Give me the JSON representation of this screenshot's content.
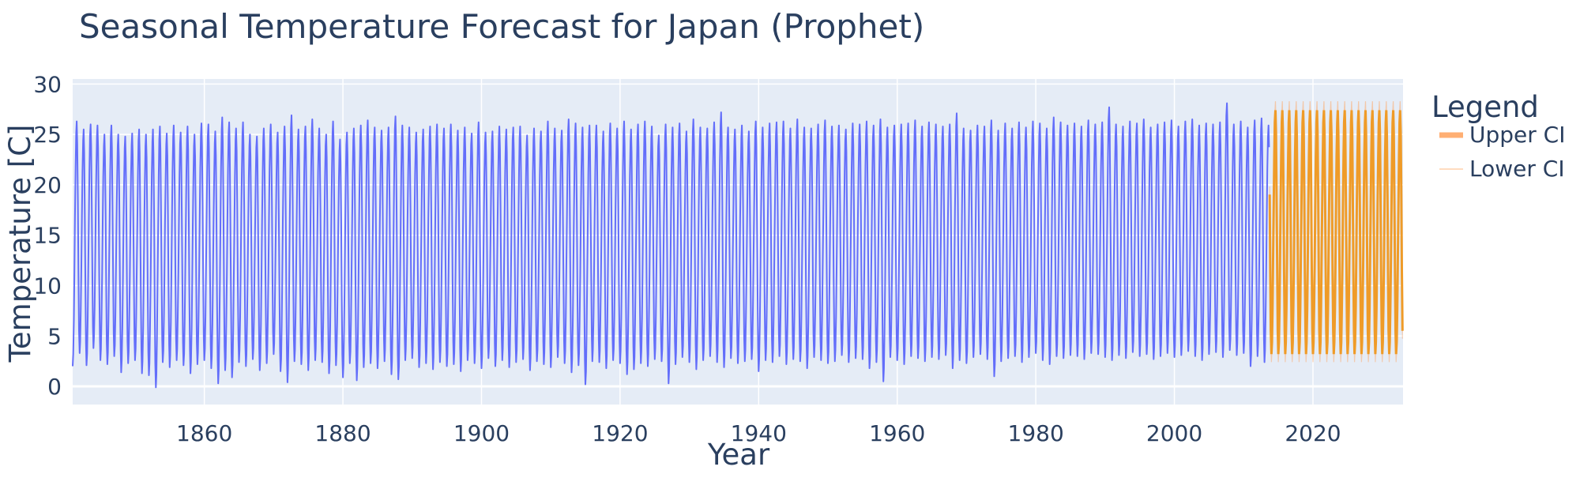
{
  "chart_data": {
    "type": "line",
    "title": "Seasonal Temperature Forecast for Japan (Prophet)",
    "xlabel": "Year",
    "ylabel": "Temperature [C]",
    "xlim": [
      1841,
      2033
    ],
    "ylim": [
      -1.8,
      30.5
    ],
    "xticks": [
      1860,
      1880,
      1900,
      1920,
      1940,
      1960,
      1980,
      2000,
      2020
    ],
    "yticks": [
      0,
      5,
      10,
      15,
      20,
      25,
      30
    ],
    "grid": true,
    "legend": {
      "title": "Legend",
      "position": "right",
      "entries": [
        "Upper CI",
        "Lower CI"
      ]
    },
    "history": {
      "start_year": 1841,
      "end_year": 2013.7,
      "summer_peak_approx": [
        26.3,
        25.5,
        26.0,
        25.9,
        25.0,
        25.9,
        25.0,
        24.8,
        25.1,
        25.5,
        25.0,
        25.5,
        25.8,
        25.1,
        25.9,
        25.2,
        25.8,
        25.0,
        26.1,
        26.0,
        25.3,
        26.7,
        26.2,
        25.6,
        26.2,
        25.0,
        24.8,
        25.6,
        26.0,
        25.2,
        25.8,
        26.9,
        25.5,
        25.8,
        26.5,
        25.6,
        25.0,
        26.3,
        24.5,
        25.2,
        25.6,
        25.9,
        26.4,
        25.7,
        25.4,
        25.7,
        26.8,
        25.9,
        25.7,
        25.2,
        25.5,
        25.8,
        26.0,
        25.6,
        26.0,
        25.4,
        25.7,
        25.1,
        26.2,
        25.2,
        25.3,
        25.8,
        25.5,
        25.7,
        25.8,
        24.9,
        25.6,
        25.3,
        26.3,
        25.6,
        25.4,
        26.5,
        26.1,
        25.7,
        25.9,
        25.9,
        25.3,
        26.1,
        25.6,
        26.3,
        25.5,
        26.0,
        26.3,
        25.8,
        24.9,
        26.0,
        25.7,
        26.1,
        25.3,
        26.5,
        25.7,
        25.6,
        26.2,
        27.2,
        25.7,
        25.5,
        25.9,
        25.3,
        26.3,
        25.7,
        26.1,
        26.2,
        26.3,
        25.6,
        26.5,
        25.7,
        25.6,
        26.0,
        26.4,
        25.8,
        25.9,
        25.5,
        26.1,
        26.0,
        26.3,
        25.9,
        26.5,
        25.7,
        25.9,
        26.0,
        26.1,
        26.4,
        25.8,
        26.2,
        26.0,
        25.8,
        26.0,
        27.1,
        25.6,
        25.4,
        25.9,
        25.8,
        26.4,
        25.4,
        26.1,
        25.6,
        26.2,
        25.7,
        26.3,
        26.1,
        25.6,
        26.7,
        26.2,
        25.9,
        26.1,
        25.8,
        26.4,
        26.0,
        26.2,
        27.7,
        26.0,
        25.8,
        26.3,
        26.1,
        26.5,
        25.7,
        26.0,
        26.2,
        26.4,
        25.8,
        26.3,
        26.5,
        25.9,
        26.1,
        26.0,
        26.2,
        28.1,
        26.0,
        26.3,
        25.7,
        26.4,
        26.6,
        25.9
      ],
      "winter_trough_approx": [
        2.0,
        3.3,
        2.1,
        3.8,
        2.6,
        2.2,
        3.0,
        1.4,
        2.3,
        2.6,
        1.3,
        1.1,
        -0.1,
        2.4,
        1.9,
        2.6,
        2.1,
        1.3,
        2.2,
        2.6,
        1.8,
        0.3,
        1.6,
        0.9,
        2.4,
        2.0,
        2.7,
        1.6,
        2.3,
        3.2,
        1.5,
        0.4,
        2.5,
        2.2,
        1.6,
        2.6,
        2.4,
        1.3,
        2.1,
        0.9,
        2.3,
        0.6,
        1.9,
        2.3,
        1.8,
        2.5,
        1.2,
        0.7,
        2.6,
        2.8,
        1.9,
        2.3,
        1.7,
        2.4,
        2.0,
        2.2,
        1.5,
        2.6,
        2.3,
        1.8,
        2.8,
        2.0,
        2.6,
        1.9,
        2.4,
        2.7,
        1.6,
        2.5,
        2.2,
        1.9,
        2.9,
        2.3,
        1.4,
        2.1,
        0.2,
        2.5,
        2.4,
        1.8,
        2.6,
        2.3,
        1.2,
        1.7,
        2.3,
        2.0,
        2.7,
        2.5,
        0.3,
        2.2,
        2.9,
        2.4,
        1.7,
        2.6,
        3.0,
        2.4,
        1.9,
        2.8,
        2.3,
        2.5,
        2.7,
        1.5,
        2.6,
        2.4,
        3.0,
        2.2,
        2.7,
        2.5,
        1.8,
        2.9,
        2.6,
        2.3,
        2.5,
        3.1,
        2.4,
        2.8,
        2.7,
        1.8,
        2.4,
        0.5,
        2.9,
        2.6,
        2.2,
        3.0,
        2.8,
        2.5,
        2.9,
        2.7,
        3.1,
        1.8,
        2.6,
        2.3,
        2.9,
        3.2,
        2.7,
        1.0,
        2.5,
        2.8,
        3.0,
        2.4,
        2.9,
        3.3,
        2.6,
        2.2,
        3.0,
        2.8,
        3.1,
        3.0,
        2.7,
        3.3,
        3.2,
        2.9,
        2.6,
        3.1,
        2.8,
        3.4,
        3.0,
        3.2,
        2.7,
        3.0,
        3.3,
        2.9,
        3.1,
        3.5,
        3.0,
        2.6,
        3.2,
        3.4,
        2.9,
        3.6,
        3.1,
        3.3,
        2.0,
        3.0,
        2.4,
        3.2
      ]
    },
    "series": [
      {
        "name": "Upper CI",
        "x_start": 2013.7,
        "x_end": 2033,
        "summer_peak": 28.3,
        "winter_trough": 3.8,
        "color": "#ffa15a"
      },
      {
        "name": "Lower CI",
        "x_start": 2013.7,
        "x_end": 2033,
        "summer_peak": 26.8,
        "winter_trough": 2.4,
        "color": "#ffa15a"
      }
    ],
    "forecast_line": {
      "x_start": 2013.7,
      "x_end": 2033,
      "summer_peak": 27.4,
      "winter_trough": 3.2,
      "color": "#ef9b28"
    },
    "colors": {
      "history": "#636efa",
      "plot_bg": "#e5ecf6",
      "grid": "#ffffff",
      "text": "#2a3f5f"
    }
  }
}
